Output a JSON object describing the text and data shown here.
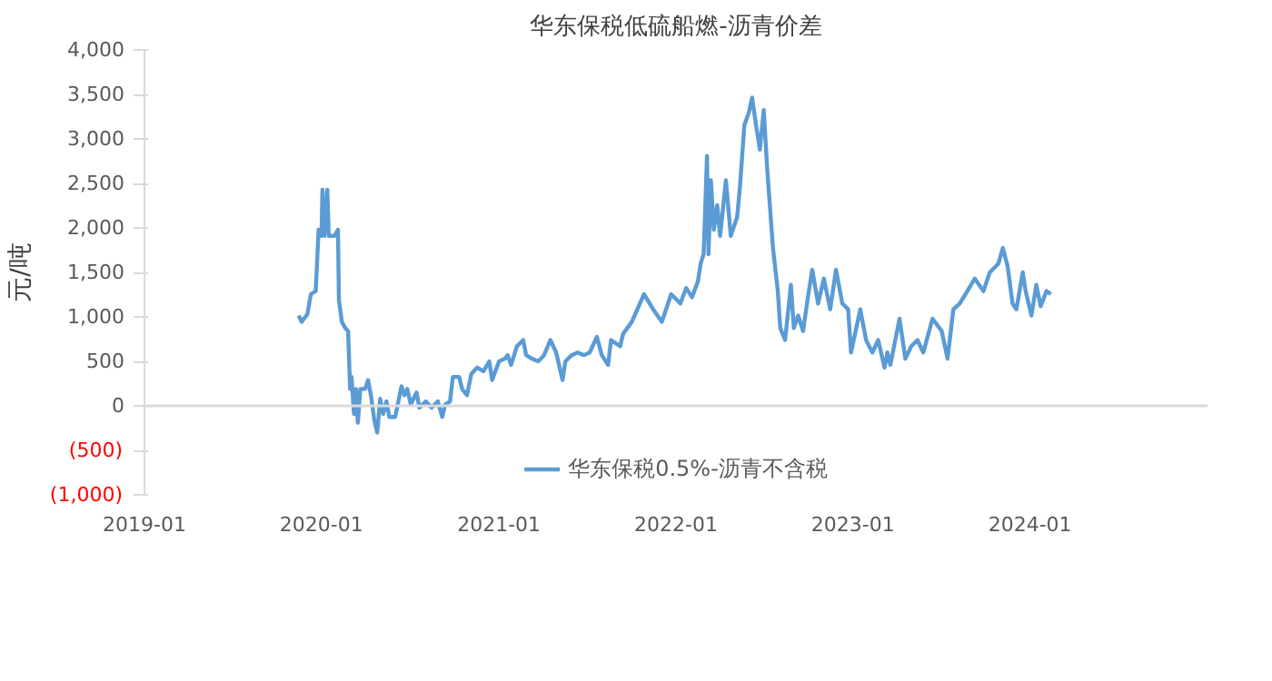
{
  "chart_data": {
    "type": "line",
    "title": "华东保税低硫船燃-沥青价差",
    "ylabel": "元/吨",
    "x": [
      "2019-11-15",
      "2019-11-21",
      "2019-12-03",
      "2019-12-10",
      "2019-12-20",
      "2019-12-22",
      "2019-12-26",
      "2020-01-01",
      "2020-01-03",
      "2020-01-07",
      "2020-01-13",
      "2020-01-16",
      "2020-01-28",
      "2020-02-04",
      "2020-02-06",
      "2020-02-12",
      "2020-02-19",
      "2020-02-25",
      "2020-02-29",
      "2020-03-03",
      "2020-03-08",
      "2020-03-12",
      "2020-03-16",
      "2020-03-21",
      "2020-03-31",
      "2020-04-06",
      "2020-04-12",
      "2020-04-19",
      "2020-04-25",
      "2020-05-01",
      "2020-05-07",
      "2020-05-14",
      "2020-05-20",
      "2020-06-01",
      "2020-06-14",
      "2020-06-20",
      "2020-06-26",
      "2020-07-03",
      "2020-07-15",
      "2020-07-21",
      "2020-08-03",
      "2020-08-15",
      "2020-08-28",
      "2020-09-06",
      "2020-09-12",
      "2020-09-22",
      "2020-09-28",
      "2020-10-11",
      "2020-10-17",
      "2020-10-27",
      "2020-11-05",
      "2020-11-17",
      "2020-11-30",
      "2020-12-12",
      "2020-12-18",
      "2021-01-01",
      "2021-01-13",
      "2021-01-19",
      "2021-01-26",
      "2021-02-07",
      "2021-02-20",
      "2021-02-26",
      "2021-03-10",
      "2021-03-23",
      "2021-04-04",
      "2021-04-17",
      "2021-04-29",
      "2021-05-12",
      "2021-05-18",
      "2021-05-31",
      "2021-06-12",
      "2021-06-25",
      "2021-07-07",
      "2021-07-22",
      "2021-08-01",
      "2021-08-14",
      "2021-08-20",
      "2021-09-08",
      "2021-09-14",
      "2021-10-02",
      "2021-10-27",
      "2021-11-15",
      "2021-12-03",
      "2021-12-22",
      "2022-01-10",
      "2022-01-22",
      "2022-02-03",
      "2022-02-15",
      "2022-02-21",
      "2022-02-27",
      "2022-03-06",
      "2022-03-09",
      "2022-03-14",
      "2022-03-20",
      "2022-03-27",
      "2022-04-02",
      "2022-04-14",
      "2022-04-24",
      "2022-05-07",
      "2022-05-13",
      "2022-05-22",
      "2022-05-31",
      "2022-06-07",
      "2022-06-15",
      "2022-06-23",
      "2022-07-01",
      "2022-07-08",
      "2022-07-20",
      "2022-07-30",
      "2022-08-04",
      "2022-08-14",
      "2022-08-26",
      "2022-09-01",
      "2022-09-10",
      "2022-09-20",
      "2022-09-30",
      "2022-10-09",
      "2022-10-21",
      "2022-11-02",
      "2022-11-15",
      "2022-11-27",
      "2022-12-10",
      "2022-12-22",
      "2022-12-28",
      "2023-01-16",
      "2023-01-28",
      "2023-02-10",
      "2023-02-22",
      "2023-03-07",
      "2023-03-13",
      "2023-03-19",
      "2023-04-07",
      "2023-04-19",
      "2023-05-01",
      "2023-05-14",
      "2023-05-26",
      "2023-06-14",
      "2023-07-03",
      "2023-07-15",
      "2023-07-27",
      "2023-08-09",
      "2023-08-21",
      "2023-09-09",
      "2023-09-27",
      "2023-10-10",
      "2023-10-28",
      "2023-11-06",
      "2023-11-16",
      "2023-11-26",
      "2023-12-04",
      "2023-12-17",
      "2023-12-23",
      "2024-01-04",
      "2024-01-14",
      "2024-01-23",
      "2024-02-04",
      "2024-02-13"
    ],
    "series": [
      {
        "name": "华东保税0.5%-沥青不含税",
        "color": "#5b9bd5",
        "values": [
          1015,
          945,
          1030,
          1255,
          1290,
          1500,
          1980,
          1910,
          2430,
          1910,
          2430,
          1910,
          1910,
          1980,
          1190,
          945,
          875,
          840,
          190,
          325,
          -90,
          190,
          -190,
          190,
          190,
          290,
          120,
          -160,
          -300,
          80,
          -90,
          50,
          -125,
          -125,
          220,
          120,
          190,
          15,
          150,
          -20,
          50,
          -20,
          50,
          -125,
          15,
          50,
          325,
          325,
          190,
          120,
          360,
          430,
          390,
          500,
          290,
          500,
          530,
          570,
          460,
          670,
          740,
          570,
          530,
          500,
          570,
          740,
          600,
          290,
          500,
          570,
          600,
          570,
          600,
          775,
          570,
          460,
          740,
          670,
          810,
          945,
          1255,
          1085,
          945,
          1255,
          1150,
          1325,
          1220,
          1395,
          1600,
          1705,
          2810,
          1705,
          2535,
          1980,
          2255,
          1910,
          2535,
          1910,
          2120,
          2465,
          3155,
          3290,
          3465,
          3155,
          2880,
          3325,
          2670,
          1775,
          1290,
          875,
          740,
          1360,
          875,
          1015,
          840,
          1220,
          1530,
          1150,
          1430,
          1085,
          1530,
          1150,
          1085,
          600,
          1085,
          740,
          600,
          740,
          430,
          600,
          460,
          980,
          530,
          670,
          740,
          600,
          980,
          840,
          530,
          1085,
          1150,
          1255,
          1430,
          1290,
          1500,
          1600,
          1775,
          1565,
          1150,
          1085,
          1500,
          1290,
          1015,
          1360,
          1120,
          1290,
          1255
        ]
      }
    ],
    "xlim": [
      "2019-01-01",
      "2025-01-01"
    ],
    "xticks": [
      {
        "value": "2019-01-01",
        "label": "2019-01"
      },
      {
        "value": "2020-01-01",
        "label": "2020-01"
      },
      {
        "value": "2021-01-01",
        "label": "2021-01"
      },
      {
        "value": "2022-01-01",
        "label": "2022-01"
      },
      {
        "value": "2023-01-01",
        "label": "2023-01"
      },
      {
        "value": "2024-01-01",
        "label": "2024-01"
      }
    ],
    "ylim": [
      -1000,
      4000
    ],
    "yticks": [
      {
        "value": -1000,
        "label": "(1,000)"
      },
      {
        "value": -500,
        "label": "(500)"
      },
      0,
      {
        "value": 500,
        "label": "500"
      },
      {
        "value": 1000,
        "label": "1,000"
      },
      {
        "value": 1500,
        "label": "1,500"
      },
      {
        "value": 2000,
        "label": "2,000"
      },
      {
        "value": 2500,
        "label": "2,500"
      },
      {
        "value": 3000,
        "label": "3,000"
      },
      {
        "value": 3500,
        "label": "3,500"
      },
      {
        "value": 4000,
        "label": "4,000"
      }
    ],
    "ref_lines": [
      {
        "axis": "y",
        "value": 0,
        "color": "#d9d9d9"
      }
    ],
    "grid": false,
    "legend": "bottom",
    "marker": "none",
    "line_style": "solid"
  }
}
